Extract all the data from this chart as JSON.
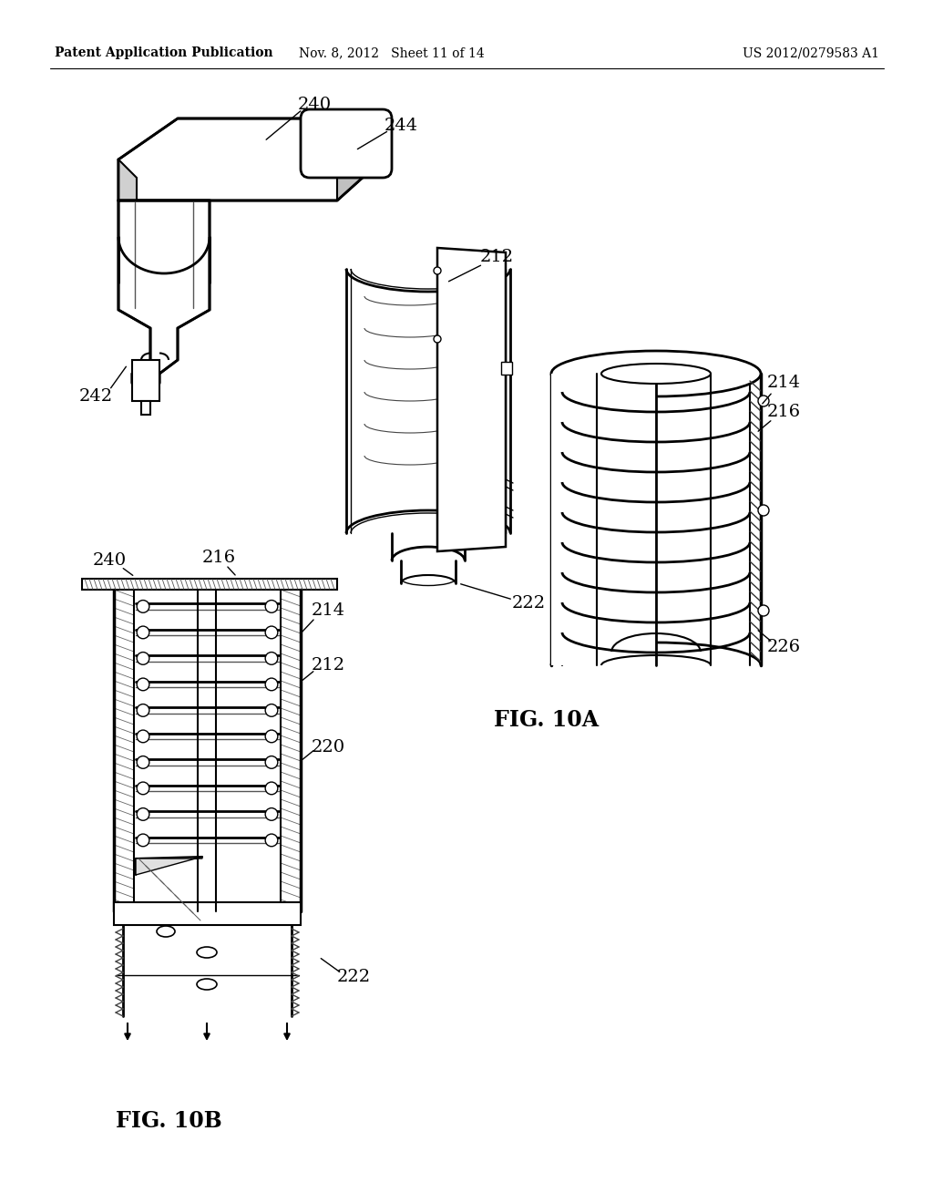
{
  "bg": "#ffffff",
  "lc": "#000000",
  "tc": "#000000",
  "lw_thick": 2.0,
  "lw_med": 1.5,
  "lw_thin": 0.8,
  "header_left": "Patent Application Publication",
  "header_mid": "Nov. 8, 2012   Sheet 11 of 14",
  "header_right": "US 2012/0279583 A1",
  "fig_a_label": "FIG. 10A",
  "fig_b_label": "FIG. 10B"
}
